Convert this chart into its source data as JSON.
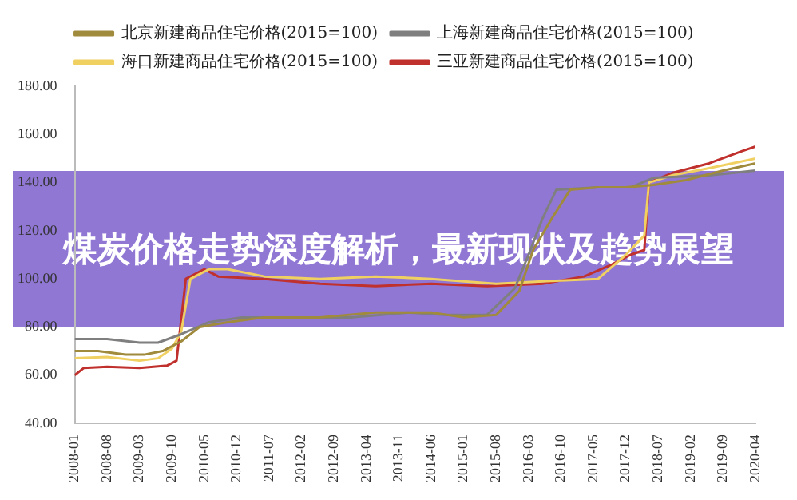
{
  "chart_data": {
    "type": "line",
    "title": "煤炭价格走势深度解析，最新现状及趋势展望",
    "legend": "top",
    "grid": false,
    "marker": "none",
    "line_style": "solid",
    "xlim": [
      "2008-01",
      "2020-04"
    ],
    "xticks": [
      "2008-01",
      "2008-08",
      "2009-03",
      "2009-10",
      "2010-05",
      "2010-12",
      "2011-07",
      "2012-02",
      "2012-09",
      "2013-04",
      "2013-11",
      "2014-06",
      "2015-01",
      "2015-08",
      "2016-03",
      "2016-10",
      "2017-05",
      "2017-12",
      "2018-07",
      "2019-02",
      "2019-09",
      "2020-04"
    ],
    "ylim": [
      40,
      180
    ],
    "yticks": [
      {
        "value": 40,
        "label": "40.00"
      },
      {
        "value": 60,
        "label": "60.00"
      },
      {
        "value": 80,
        "label": "80.00"
      },
      {
        "value": 100,
        "label": "100.00"
      },
      {
        "value": 120,
        "label": "120.00"
      },
      {
        "value": 140,
        "label": "140.00"
      },
      {
        "value": 160,
        "label": "160.00"
      },
      {
        "value": 180,
        "label": "180.00"
      }
    ],
    "series": [
      {
        "name": "北京新建商品住宅价格(2015=100)",
        "color": "#a08a3c",
        "x": [
          "2008-01",
          "2008-06",
          "2008-12",
          "2009-04",
          "2009-08",
          "2009-12",
          "2010-04",
          "2010-10",
          "2011-06",
          "2012-06",
          "2013-06",
          "2014-06",
          "2015-01",
          "2015-08",
          "2016-01",
          "2016-04",
          "2016-08",
          "2016-12",
          "2017-06",
          "2017-12",
          "2018-06",
          "2019-01",
          "2019-09",
          "2020-04"
        ],
        "values": [
          70,
          70,
          68.5,
          68.5,
          70,
          74,
          80,
          82,
          84,
          84,
          86,
          86,
          84,
          85,
          95,
          112,
          125,
          137,
          138,
          138,
          139,
          141,
          145,
          148
        ]
      },
      {
        "name": "上海新建商品住宅价格(2015=100)",
        "color": "#7f7f7f",
        "x": [
          "2008-01",
          "2008-08",
          "2009-03",
          "2009-07",
          "2009-12",
          "2010-06",
          "2011-01",
          "2012-01",
          "2013-01",
          "2014-01",
          "2014-09",
          "2015-06",
          "2015-12",
          "2016-03",
          "2016-06",
          "2016-09",
          "2017-06",
          "2018-01",
          "2018-06",
          "2019-06",
          "2020-04"
        ],
        "values": [
          75,
          75,
          73.5,
          73.5,
          77,
          82,
          84,
          84,
          84,
          86,
          85,
          85,
          96,
          110,
          125,
          137,
          138,
          138,
          142,
          143,
          145
        ]
      },
      {
        "name": "海口新建商品住宅价格(2015=100)",
        "color": "#f0d060",
        "x": [
          "2008-01",
          "2008-08",
          "2009-03",
          "2009-07",
          "2009-10",
          "2009-12",
          "2010-02",
          "2010-06",
          "2010-10",
          "2011-06",
          "2012-06",
          "2013-06",
          "2014-06",
          "2015-01",
          "2015-08",
          "2016-06",
          "2017-06",
          "2017-12",
          "2018-04",
          "2018-05",
          "2018-10",
          "2019-06",
          "2020-04"
        ],
        "values": [
          67,
          67.5,
          66,
          67,
          71,
          78,
          100,
          104,
          104,
          101,
          100,
          101,
          100,
          99,
          98,
          99,
          100,
          110,
          118,
          140,
          143,
          146,
          150
        ]
      },
      {
        "name": "三亚新建商品住宅价格(2015=100)",
        "color": "#c0302c",
        "x": [
          "2008-01",
          "2008-03",
          "2008-08",
          "2009-03",
          "2009-09",
          "2009-11",
          "2010-01",
          "2010-05",
          "2010-08",
          "2011-06",
          "2012-06",
          "2013-06",
          "2014-06",
          "2015-06",
          "2016-06",
          "2017-03",
          "2017-09",
          "2018-01",
          "2018-04",
          "2018-05",
          "2018-10",
          "2019-06",
          "2020-01",
          "2020-04"
        ],
        "values": [
          60,
          63,
          63.5,
          63,
          64,
          66,
          100,
          104,
          101,
          100,
          98,
          97,
          98,
          97,
          98,
          101,
          106,
          110,
          112,
          140,
          144,
          148,
          153,
          155
        ]
      }
    ]
  }
}
